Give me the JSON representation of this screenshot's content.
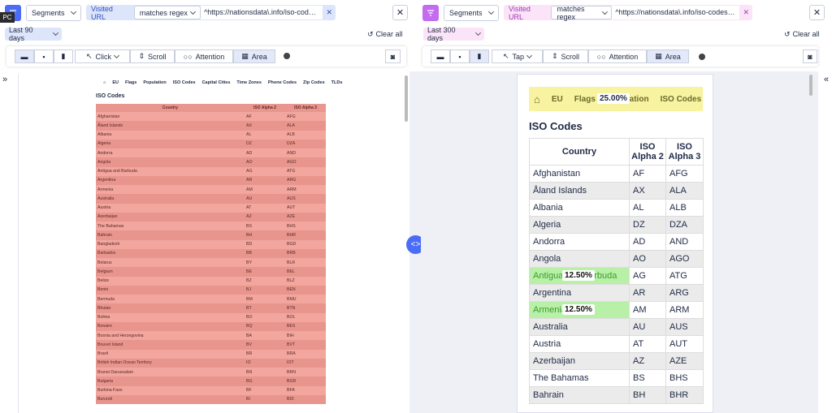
{
  "left": {
    "tooltip": "PC",
    "segments": "Segments",
    "filter_label": "Visited URL",
    "operator": "matches regex",
    "pattern": "^https://nationsdata\\.info/iso-codes(\\?.*)",
    "date_range": "Last 90 days",
    "clear": "Clear all",
    "tools": [
      "Click",
      "Scroll",
      "Attention",
      "Area"
    ],
    "preview": {
      "nav": [
        "EU",
        "Flags",
        "Population",
        "ISO Codes",
        "Capital Cities",
        "Time Zones",
        "Phone Codes",
        "Zip Codes",
        "TLDs"
      ],
      "heading": "ISO Codes",
      "columns": [
        "Country",
        "ISO Alpha 2",
        "ISO Alpha 3"
      ],
      "rows": [
        [
          "Afghanistan",
          "AF",
          "AFG"
        ],
        [
          "Åland Islands",
          "AX",
          "ALA"
        ],
        [
          "Albania",
          "AL",
          "ALB"
        ],
        [
          "Algeria",
          "DZ",
          "DZA"
        ],
        [
          "Andorra",
          "AD",
          "AND"
        ],
        [
          "Angola",
          "AO",
          "AGO"
        ],
        [
          "Antigua and Barbuda",
          "AG",
          "ATG"
        ],
        [
          "Argentina",
          "AR",
          "ARG"
        ],
        [
          "Armenia",
          "AM",
          "ARM"
        ],
        [
          "Australia",
          "AU",
          "AUS"
        ],
        [
          "Austria",
          "AT",
          "AUT"
        ],
        [
          "Azerbaijan",
          "AZ",
          "AZE"
        ],
        [
          "The Bahamas",
          "BS",
          "BHS"
        ],
        [
          "Bahrain",
          "BH",
          "BHR"
        ],
        [
          "Bangladesh",
          "BD",
          "BGD"
        ],
        [
          "Barbados",
          "BB",
          "BRB"
        ],
        [
          "Belarus",
          "BY",
          "BLR"
        ],
        [
          "Belgium",
          "BE",
          "BEL"
        ],
        [
          "Belize",
          "BZ",
          "BLZ"
        ],
        [
          "Benin",
          "BJ",
          "BEN"
        ],
        [
          "Bermuda",
          "BM",
          "BMU"
        ],
        [
          "Bhutan",
          "BT",
          "BTN"
        ],
        [
          "Bolivia",
          "BO",
          "BOL"
        ],
        [
          "Bonaire",
          "BQ",
          "BES"
        ],
        [
          "Bosnia and Herzegovina",
          "BA",
          "BIH"
        ],
        [
          "Bouvet Island",
          "BV",
          "BVT"
        ],
        [
          "Brazil",
          "BR",
          "BRA"
        ],
        [
          "British Indian Ocean Territory",
          "IO",
          "IOT"
        ],
        [
          "Brunei Darussalam",
          "BN",
          "BRN"
        ],
        [
          "Bulgaria",
          "BG",
          "BGR"
        ],
        [
          "Burkina Faso",
          "BF",
          "BFA"
        ],
        [
          "Burundi",
          "BI",
          "BDI"
        ]
      ]
    }
  },
  "right": {
    "segments": "Segments",
    "filter_label": "Visited URL",
    "operator": "matches regex",
    "pattern": "^https://nationsdata\\.info/iso-codes(\\?.*)",
    "date_range": "Last 300 days",
    "clear": "Clear all",
    "tools": [
      "Tap",
      "Scroll",
      "Attention",
      "Area"
    ],
    "preview": {
      "nav": [
        "EU",
        "Flags",
        "Population",
        "ISO Codes"
      ],
      "nav_area_label": "25.00%",
      "heading": "ISO Codes",
      "columns": [
        "Country",
        "ISO Alpha 2",
        "ISO Alpha 3"
      ],
      "rows": [
        [
          "Afghanistan",
          "AF",
          "AFG"
        ],
        [
          "Åland Islands",
          "AX",
          "ALA"
        ],
        [
          "Albania",
          "AL",
          "ALB"
        ],
        [
          "Algeria",
          "DZ",
          "DZA"
        ],
        [
          "Andorra",
          "AD",
          "AND"
        ],
        [
          "Angola",
          "AO",
          "AGO"
        ],
        [
          "Antigua and Barbuda",
          "AG",
          "ATG"
        ],
        [
          "Argentina",
          "AR",
          "ARG"
        ],
        [
          "Armenia",
          "AM",
          "ARM"
        ],
        [
          "Australia",
          "AU",
          "AUS"
        ],
        [
          "Austria",
          "AT",
          "AUT"
        ],
        [
          "Azerbaijan",
          "AZ",
          "AZE"
        ],
        [
          "The Bahamas",
          "BS",
          "BHS"
        ],
        [
          "Bahrain",
          "BH",
          "BHR"
        ]
      ],
      "area_labels": [
        {
          "row": 6,
          "label": "12.50%"
        },
        {
          "row": 8,
          "label": "12.50%"
        }
      ]
    }
  }
}
